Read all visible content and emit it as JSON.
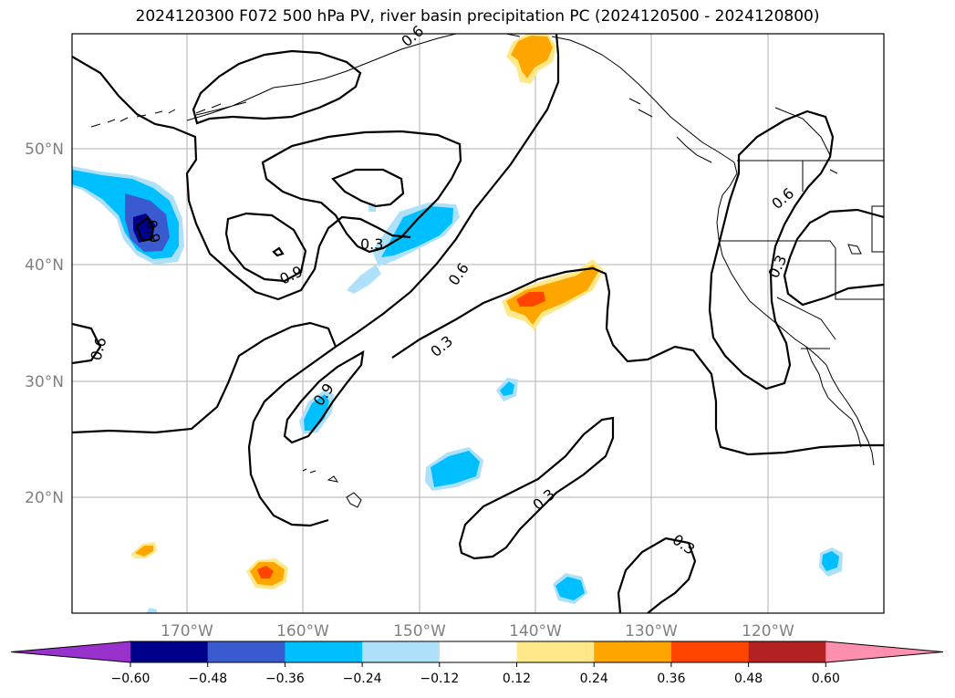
{
  "title": "2024120300 F072 500 hPa PV, river basin precipitation PC (2024120500 - 2024120800)",
  "axes": {
    "lon_labels": [
      "170°W",
      "160°W",
      "150°W",
      "140°W",
      "130°W",
      "120°W"
    ],
    "lat_labels": [
      "50°N",
      "40°N",
      "30°N",
      "20°N"
    ],
    "grid": true
  },
  "contour_labels": {
    "north_06": "0.6",
    "left_09": "0.9",
    "west_06": "0.6",
    "low_03": "0.3",
    "mid_06": "0.6",
    "mid_03": "0.3",
    "tongue_09": "0.9",
    "coast_06": "0.6",
    "coast_03": "0.3",
    "south_03": "0.3",
    "far_03": "0.3",
    "anom_09": "0.9"
  },
  "colorbar": {
    "ticks": [
      "−0.60",
      "−0.48",
      "−0.36",
      "−0.24",
      "−0.12",
      "0.12",
      "0.24",
      "0.36",
      "0.48",
      "0.60"
    ],
    "colors": [
      "#9932cc",
      "#00008b",
      "#3a5bd0",
      "#00bfff",
      "#aee0fa",
      "#ffffff",
      "#ffe88a",
      "#ffa500",
      "#ff4500",
      "#b22222",
      "#ff8fae"
    ]
  }
}
